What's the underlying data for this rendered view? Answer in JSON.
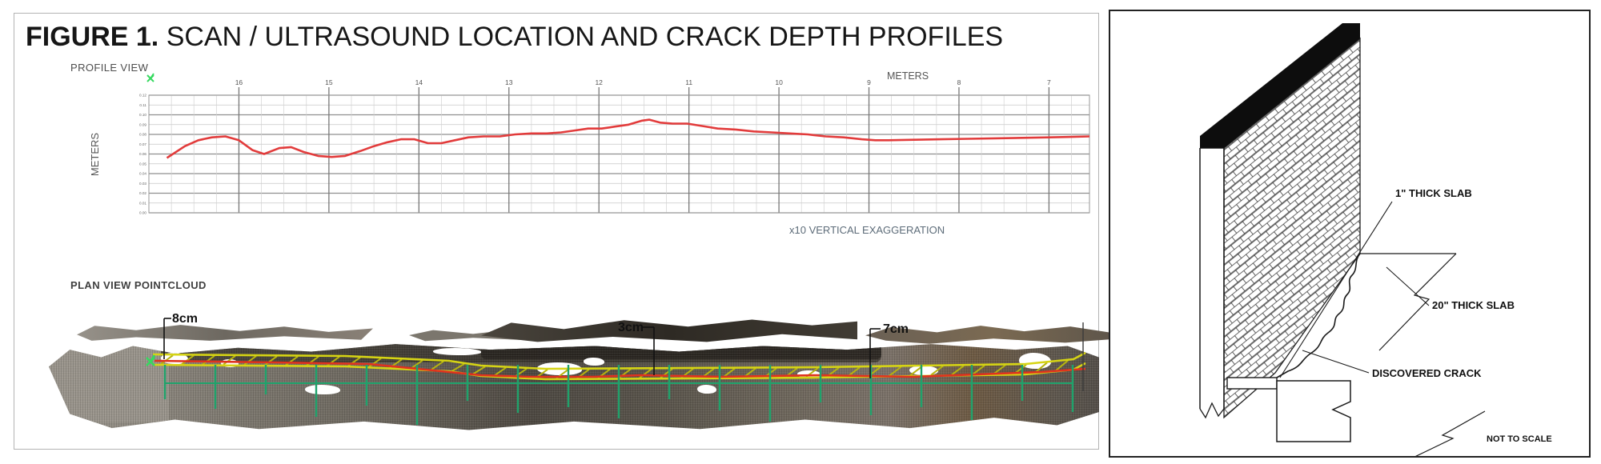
{
  "figure": {
    "title_bold": "FIGURE 1.",
    "title_rest": " SCAN / ULTRASOUND LOCATION AND CRACK DEPTH PROFILES"
  },
  "profile_view": {
    "label": "PROFILE VIEW",
    "top_axis_label": "METERS",
    "left_axis_label": "METERS",
    "exaggeration_note": "x10 VERTICAL EXAGGERATION"
  },
  "chart_data": {
    "type": "line",
    "title": "PROFILE VIEW",
    "xlabel": "METERS",
    "ylabel": "METERS",
    "x_ticks": [
      16,
      15,
      14,
      13,
      12,
      11,
      10,
      9,
      8,
      7
    ],
    "x_range": [
      17.0,
      6.55
    ],
    "x_direction": "decreasing-left-to-right",
    "y_ticks": [
      "0.12",
      "0.11",
      "0.10",
      "0.09",
      "0.08",
      "0.07",
      "0.06",
      "0.05",
      "0.04",
      "0.03",
      "0.02",
      "0.01",
      "0.00"
    ],
    "y_range": [
      0,
      0.12
    ],
    "grid": true,
    "legend_position": "none",
    "annotations": [
      "x10 VERTICAL EXAGGERATION"
    ],
    "series": [
      {
        "name": "crack depth profile",
        "color": "#e23b3b",
        "points": [
          [
            16.8,
            0.056
          ],
          [
            16.6,
            0.068
          ],
          [
            16.45,
            0.074
          ],
          [
            16.3,
            0.077
          ],
          [
            16.15,
            0.078
          ],
          [
            16.0,
            0.074
          ],
          [
            15.85,
            0.064
          ],
          [
            15.72,
            0.06
          ],
          [
            15.55,
            0.066
          ],
          [
            15.42,
            0.067
          ],
          [
            15.28,
            0.062
          ],
          [
            15.12,
            0.058
          ],
          [
            14.97,
            0.057
          ],
          [
            14.82,
            0.058
          ],
          [
            14.65,
            0.063
          ],
          [
            14.5,
            0.068
          ],
          [
            14.35,
            0.072
          ],
          [
            14.2,
            0.075
          ],
          [
            14.05,
            0.075
          ],
          [
            13.9,
            0.071
          ],
          [
            13.75,
            0.071
          ],
          [
            13.6,
            0.074
          ],
          [
            13.45,
            0.077
          ],
          [
            13.28,
            0.078
          ],
          [
            13.1,
            0.078
          ],
          [
            12.93,
            0.08
          ],
          [
            12.75,
            0.081
          ],
          [
            12.58,
            0.081
          ],
          [
            12.42,
            0.082
          ],
          [
            12.27,
            0.084
          ],
          [
            12.12,
            0.086
          ],
          [
            11.97,
            0.086
          ],
          [
            11.82,
            0.088
          ],
          [
            11.67,
            0.09
          ],
          [
            11.52,
            0.094
          ],
          [
            11.44,
            0.095
          ],
          [
            11.32,
            0.092
          ],
          [
            11.18,
            0.091
          ],
          [
            11.02,
            0.091
          ],
          [
            10.88,
            0.089
          ],
          [
            10.68,
            0.086
          ],
          [
            10.48,
            0.085
          ],
          [
            10.28,
            0.083
          ],
          [
            10.08,
            0.082
          ],
          [
            9.88,
            0.081
          ],
          [
            9.68,
            0.08
          ],
          [
            9.48,
            0.078
          ],
          [
            9.28,
            0.077
          ],
          [
            9.08,
            0.075
          ],
          [
            8.93,
            0.074
          ],
          [
            8.78,
            0.074
          ],
          [
            8.5,
            0.0745
          ],
          [
            8.2,
            0.075
          ],
          [
            7.9,
            0.0755
          ],
          [
            7.6,
            0.076
          ],
          [
            7.3,
            0.0765
          ],
          [
            7.0,
            0.077
          ],
          [
            6.75,
            0.0775
          ],
          [
            6.55,
            0.078
          ]
        ]
      }
    ]
  },
  "plan_view": {
    "label": "PLAN VIEW POINTCLOUD",
    "annotations": [
      {
        "label": "8cm"
      },
      {
        "label": "3cm"
      },
      {
        "label": "7cm"
      }
    ],
    "colors": {
      "scan_band_yellow": "#d6d414",
      "crack_line_red": "#e0321e",
      "tick_green": "#1fa26b",
      "marker_green": "#35d95f"
    }
  },
  "detail_diagram": {
    "labels": {
      "slab1": "1\" THICK SLAB",
      "slab20": "20\" THICK SLAB",
      "crack": "DISCOVERED CRACK",
      "scale_note": "NOT TO SCALE"
    }
  }
}
